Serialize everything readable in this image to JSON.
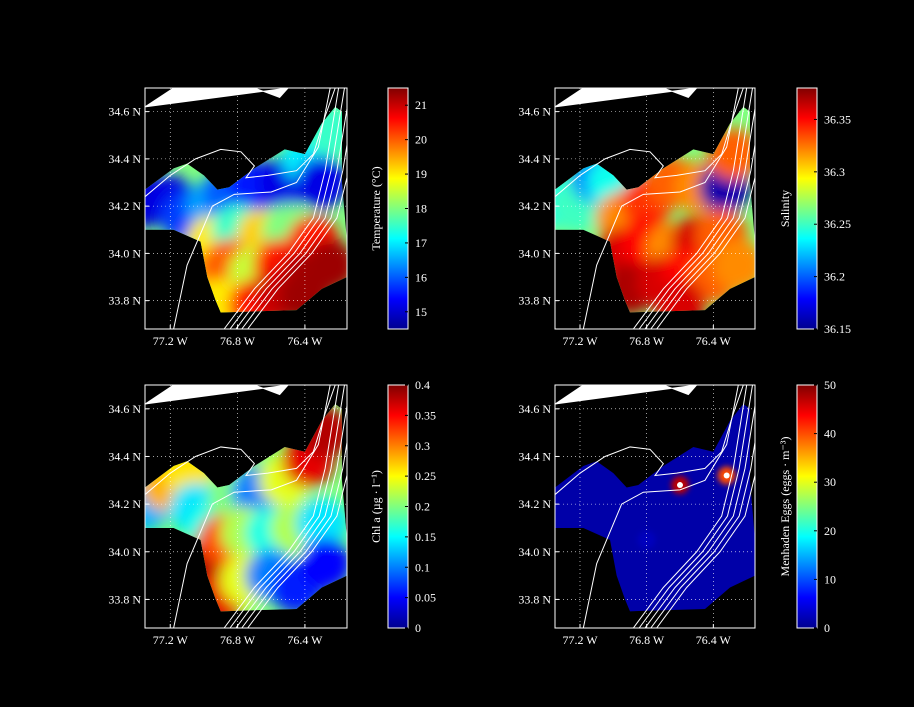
{
  "chart_data": [
    {
      "type": "heatmap",
      "variable": "Temperature",
      "colorbar": {
        "label": "Temperature (°C)",
        "min": 14.5,
        "max": 21.5,
        "ticks": [
          15,
          16,
          17,
          18,
          19,
          20,
          21
        ]
      },
      "lat_ticks": [
        "34.6 N",
        "34.4 N",
        "34.2 N",
        "34.0 N",
        "33.8 N"
      ],
      "lon_ticks": [
        "77.2 W",
        "76.8 W",
        "76.4 W"
      ],
      "samples": [
        {
          "lon": -77.35,
          "lat": 34.22,
          "value": 15.0
        },
        {
          "lon": -77.2,
          "lat": 34.22,
          "value": 15.2
        },
        {
          "lon": -77.1,
          "lat": 34.15,
          "value": 15.8
        },
        {
          "lon": -76.95,
          "lat": 34.2,
          "value": 16.5
        },
        {
          "lon": -76.85,
          "lat": 34.26,
          "value": 16.0
        },
        {
          "lon": -76.7,
          "lat": 34.28,
          "value": 15.5
        },
        {
          "lon": -76.52,
          "lat": 34.3,
          "value": 15.2
        },
        {
          "lon": -76.38,
          "lat": 34.4,
          "value": 17.0
        },
        {
          "lon": -76.3,
          "lat": 34.3,
          "value": 15.2
        },
        {
          "lon": -76.25,
          "lat": 34.52,
          "value": 17.5
        },
        {
          "lon": -76.95,
          "lat": 34.05,
          "value": 19.0
        },
        {
          "lon": -76.8,
          "lat": 34.1,
          "value": 17.5
        },
        {
          "lon": -76.65,
          "lat": 34.08,
          "value": 19.2
        },
        {
          "lon": -76.5,
          "lat": 34.1,
          "value": 18.0
        },
        {
          "lon": -76.35,
          "lat": 34.05,
          "value": 20.5
        },
        {
          "lon": -76.95,
          "lat": 33.9,
          "value": 19.5
        },
        {
          "lon": -76.85,
          "lat": 33.95,
          "value": 20.0
        },
        {
          "lon": -76.7,
          "lat": 33.92,
          "value": 18.5
        },
        {
          "lon": -76.55,
          "lat": 33.95,
          "value": 20.5
        },
        {
          "lon": -76.4,
          "lat": 33.9,
          "value": 21.2
        },
        {
          "lon": -76.25,
          "lat": 33.95,
          "value": 21.3
        },
        {
          "lon": -76.9,
          "lat": 33.78,
          "value": 19.0
        },
        {
          "lon": -76.7,
          "lat": 33.78,
          "value": 20.5
        },
        {
          "lon": -76.55,
          "lat": 33.82,
          "value": 21.0
        },
        {
          "lon": -76.4,
          "lat": 33.82,
          "value": 21.3
        }
      ]
    },
    {
      "type": "heatmap",
      "variable": "Salinity",
      "colorbar": {
        "label": "Salinity",
        "min": 36.15,
        "max": 36.38,
        "ticks": [
          36.15,
          36.2,
          36.25,
          36.3,
          36.35
        ]
      },
      "lat_ticks": [
        "34.6 N",
        "34.4 N",
        "34.2 N",
        "34.0 N",
        "33.8 N"
      ],
      "lon_ticks": [
        "77.2 W",
        "76.8 W",
        "76.4 W"
      ],
      "samples": [
        {
          "lon": -77.35,
          "lat": 34.22,
          "value": 36.24
        },
        {
          "lon": -77.22,
          "lat": 34.2,
          "value": 36.25
        },
        {
          "lon": -77.1,
          "lat": 34.32,
          "value": 36.21
        },
        {
          "lon": -77.0,
          "lat": 34.3,
          "value": 36.24
        },
        {
          "lon": -76.95,
          "lat": 34.15,
          "value": 36.32
        },
        {
          "lon": -76.8,
          "lat": 34.22,
          "value": 36.34
        },
        {
          "lon": -76.65,
          "lat": 34.3,
          "value": 36.33
        },
        {
          "lon": -76.48,
          "lat": 34.28,
          "value": 36.32
        },
        {
          "lon": -76.33,
          "lat": 34.28,
          "value": 36.16
        },
        {
          "lon": -76.28,
          "lat": 34.42,
          "value": 36.33
        },
        {
          "lon": -76.95,
          "lat": 34.0,
          "value": 36.36
        },
        {
          "lon": -76.8,
          "lat": 34.05,
          "value": 36.35
        },
        {
          "lon": -76.65,
          "lat": 34.02,
          "value": 36.32
        },
        {
          "lon": -76.5,
          "lat": 34.05,
          "value": 36.36
        },
        {
          "lon": -76.35,
          "lat": 34.08,
          "value": 36.33
        },
        {
          "lon": -76.9,
          "lat": 33.85,
          "value": 36.37
        },
        {
          "lon": -76.7,
          "lat": 33.88,
          "value": 36.36
        },
        {
          "lon": -76.55,
          "lat": 33.92,
          "value": 36.35
        },
        {
          "lon": -76.4,
          "lat": 33.9,
          "value": 36.33
        },
        {
          "lon": -76.25,
          "lat": 33.95,
          "value": 36.32
        },
        {
          "lon": -76.6,
          "lat": 33.78,
          "value": 36.36
        }
      ]
    },
    {
      "type": "heatmap",
      "variable": "Chl a",
      "colorbar": {
        "label": "Chl a (µg · l⁻¹)",
        "min": 0,
        "max": 0.4,
        "ticks": [
          0,
          0.05,
          0.1,
          0.15,
          0.2,
          0.25,
          0.3,
          0.35,
          0.4
        ]
      },
      "lat_ticks": [
        "34.6 N",
        "34.4 N",
        "34.2 N",
        "34.0 N",
        "33.8 N"
      ],
      "lon_ticks": [
        "77.2 W",
        "76.8 W",
        "76.4 W"
      ],
      "samples": [
        {
          "lon": -77.35,
          "lat": 34.2,
          "value": 0.12
        },
        {
          "lon": -77.22,
          "lat": 34.28,
          "value": 0.28
        },
        {
          "lon": -77.1,
          "lat": 34.35,
          "value": 0.26
        },
        {
          "lon": -77.05,
          "lat": 34.18,
          "value": 0.14
        },
        {
          "lon": -76.95,
          "lat": 34.1,
          "value": 0.16
        },
        {
          "lon": -76.82,
          "lat": 34.22,
          "value": 0.2
        },
        {
          "lon": -76.68,
          "lat": 34.25,
          "value": 0.1
        },
        {
          "lon": -76.52,
          "lat": 34.3,
          "value": 0.24
        },
        {
          "lon": -76.38,
          "lat": 34.38,
          "value": 0.36
        },
        {
          "lon": -76.28,
          "lat": 34.5,
          "value": 0.38
        },
        {
          "lon": -76.98,
          "lat": 33.95,
          "value": 0.38
        },
        {
          "lon": -76.88,
          "lat": 34.05,
          "value": 0.32
        },
        {
          "lon": -76.75,
          "lat": 34.08,
          "value": 0.22
        },
        {
          "lon": -76.6,
          "lat": 34.08,
          "value": 0.16
        },
        {
          "lon": -76.45,
          "lat": 34.1,
          "value": 0.22
        },
        {
          "lon": -76.3,
          "lat": 34.12,
          "value": 0.14
        },
        {
          "lon": -76.92,
          "lat": 33.8,
          "value": 0.36
        },
        {
          "lon": -76.75,
          "lat": 33.88,
          "value": 0.24
        },
        {
          "lon": -76.6,
          "lat": 33.9,
          "value": 0.1
        },
        {
          "lon": -76.45,
          "lat": 33.85,
          "value": 0.06
        },
        {
          "lon": -76.28,
          "lat": 33.95,
          "value": 0.05
        }
      ]
    },
    {
      "type": "heatmap",
      "variable": "Menhaden Eggs",
      "colorbar": {
        "label": "Menhaden Eggs (eggs · m⁻³)",
        "min": 0,
        "max": 50,
        "ticks": [
          0,
          10,
          20,
          30,
          40,
          50
        ]
      },
      "lat_ticks": [
        "34.6 N",
        "34.4 N",
        "34.2 N",
        "34.0 N",
        "33.8 N"
      ],
      "lon_ticks": [
        "77.2 W",
        "76.8 W",
        "76.4 W"
      ],
      "samples": [
        {
          "lon": -76.6,
          "lat": 34.28,
          "value": 47
        },
        {
          "lon": -76.32,
          "lat": 34.32,
          "value": 40
        },
        {
          "lon": -76.8,
          "lat": 34.05,
          "value": 3
        },
        {
          "lon": -76.5,
          "lat": 34.15,
          "value": 2
        }
      ]
    }
  ]
}
